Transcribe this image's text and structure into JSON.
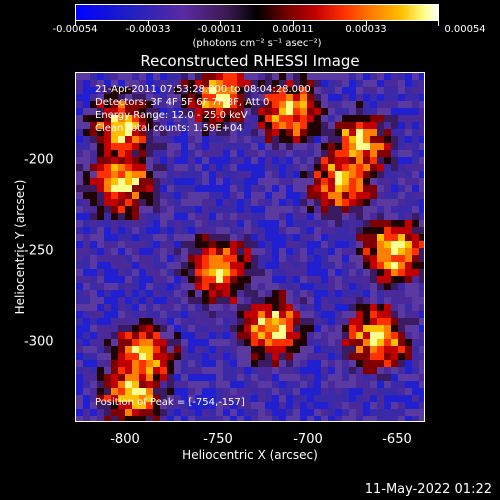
{
  "colorbar": {
    "tick_labels": [
      "-0.00054",
      "-0.00033",
      "-0.00011",
      "0.00011",
      "0.00033",
      "0.00054"
    ],
    "unit": "(photons cm⁻² s⁻¹ asec⁻²)"
  },
  "title": "Reconstructed RHESSI Image",
  "annotations": {
    "time": "21-Apr-2011 07:53:28.000 to 08:04:28.000",
    "detectors": "Detectors: 3F 4F 5F 6F 7F 8F, Att 0",
    "energy": "Energy Range: 12.0 - 25.0 keV",
    "clean": "Clean     Total counts: 1.59E+04",
    "peak": "Position of Peak = [-754,-157]"
  },
  "axes": {
    "xlabel": "Heliocentric X (arcsec)",
    "ylabel": "Heliocentric Y (arcsec)",
    "xticks": [
      "-800",
      "-750",
      "-700",
      "-650"
    ],
    "yticks": [
      "-200",
      "-250",
      "-300"
    ]
  },
  "footer_date": "11-May-2022 01:22"
}
